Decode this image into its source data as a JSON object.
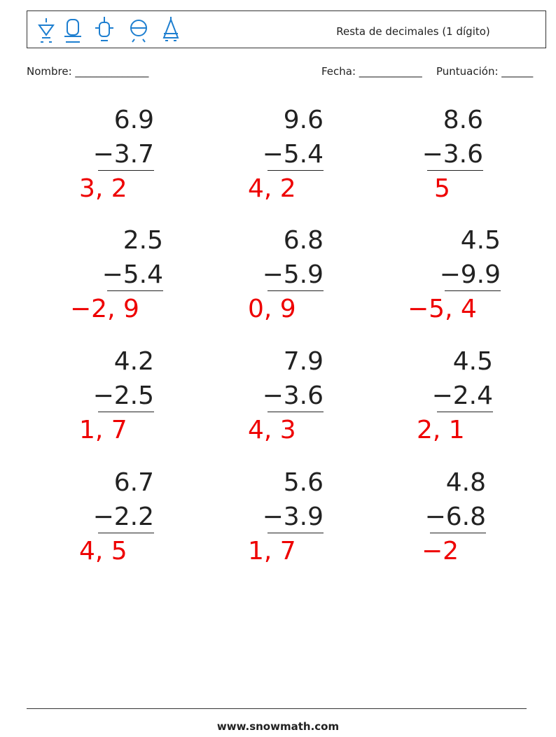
{
  "header": {
    "title": "Resta de decimales (1 dígito)"
  },
  "fields": {
    "name": "Nombre: ______________",
    "date": "Fecha: ____________",
    "score": "Puntuación: ______"
  },
  "problems": [
    {
      "top": "6.9",
      "bottom": "−3.7",
      "answer": "3, 2"
    },
    {
      "top": "9.6",
      "bottom": "−5.4",
      "answer": "4, 2"
    },
    {
      "top": "8.6",
      "bottom": "−3.6",
      "answer": "5"
    },
    {
      "top": "2.5",
      "bottom": "−5.4",
      "answer": "−2, 9"
    },
    {
      "top": "6.8",
      "bottom": "−5.9",
      "answer": "0, 9"
    },
    {
      "top": "4.5",
      "bottom": "−9.9",
      "answer": "−5, 4"
    },
    {
      "top": "4.2",
      "bottom": "−2.5",
      "answer": "1, 7"
    },
    {
      "top": "7.9",
      "bottom": "−3.6",
      "answer": "4, 3"
    },
    {
      "top": "4.5",
      "bottom": "−2.4",
      "answer": "2, 1"
    },
    {
      "top": "6.7",
      "bottom": "−2.2",
      "answer": "4, 5"
    },
    {
      "top": "5.6",
      "bottom": "−3.9",
      "answer": "1, 7"
    },
    {
      "top": "4.8",
      "bottom": "−6.8",
      "answer": "−2"
    }
  ],
  "footer": {
    "url": "www.snowmath.com"
  }
}
